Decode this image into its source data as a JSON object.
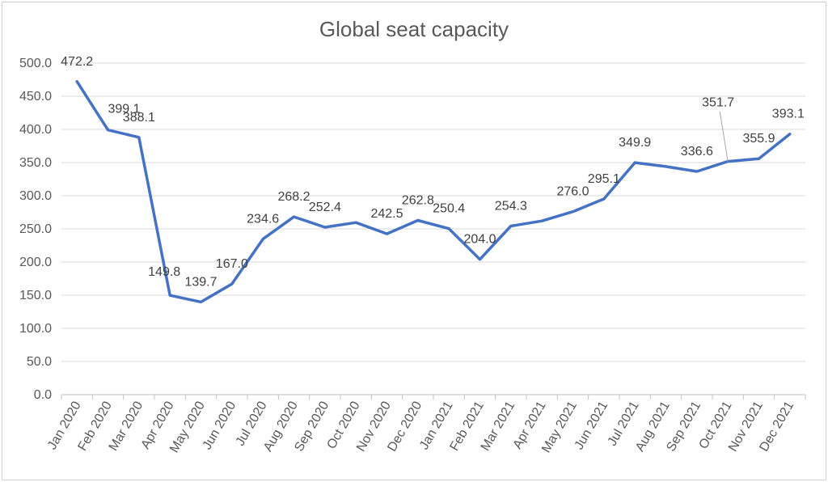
{
  "chart_data": {
    "type": "line",
    "title": "Global seat capacity",
    "xlabel": "",
    "ylabel": "",
    "ylim": [
      0,
      500
    ],
    "ytick_step": 50,
    "ytick_format_decimals": 1,
    "grid": true,
    "legend": "none",
    "line_color": "#4472c4",
    "categories": [
      "Jan 2020",
      "Feb 2020",
      "Mar 2020",
      "Apr 2020",
      "May 2020",
      "Jun 2020",
      "Jul 2020",
      "Aug 2020",
      "Sep 2020",
      "Oct 2020",
      "Nov 2020",
      "Dec 2020",
      "Jan 2021",
      "Feb 2021",
      "Mar 2021",
      "Apr 2021",
      "May 2021",
      "Jun 2021",
      "Jul 2021",
      "Aug 2021",
      "Sep 2021",
      "Oct 2021",
      "Nov 2021",
      "Dec 2021"
    ],
    "values": [
      472.2,
      399.1,
      388.1,
      149.8,
      139.7,
      167.0,
      234.6,
      268.2,
      252.4,
      259.5,
      242.5,
      262.8,
      250.4,
      204.0,
      254.3,
      262.0,
      276.0,
      295.1,
      349.9,
      344.0,
      336.6,
      351.7,
      355.9,
      393.1
    ],
    "data_labels": [
      "472.2",
      "399.1",
      "388.1",
      "149.8",
      "139.7",
      "167.0",
      "234.6",
      "268.2",
      "252.4",
      null,
      "242.5",
      "262.8",
      "250.4",
      "204.0",
      "254.3",
      null,
      "276.0",
      "295.1",
      "349.9",
      null,
      "336.6",
      "351.7",
      "355.9",
      "393.1"
    ]
  }
}
